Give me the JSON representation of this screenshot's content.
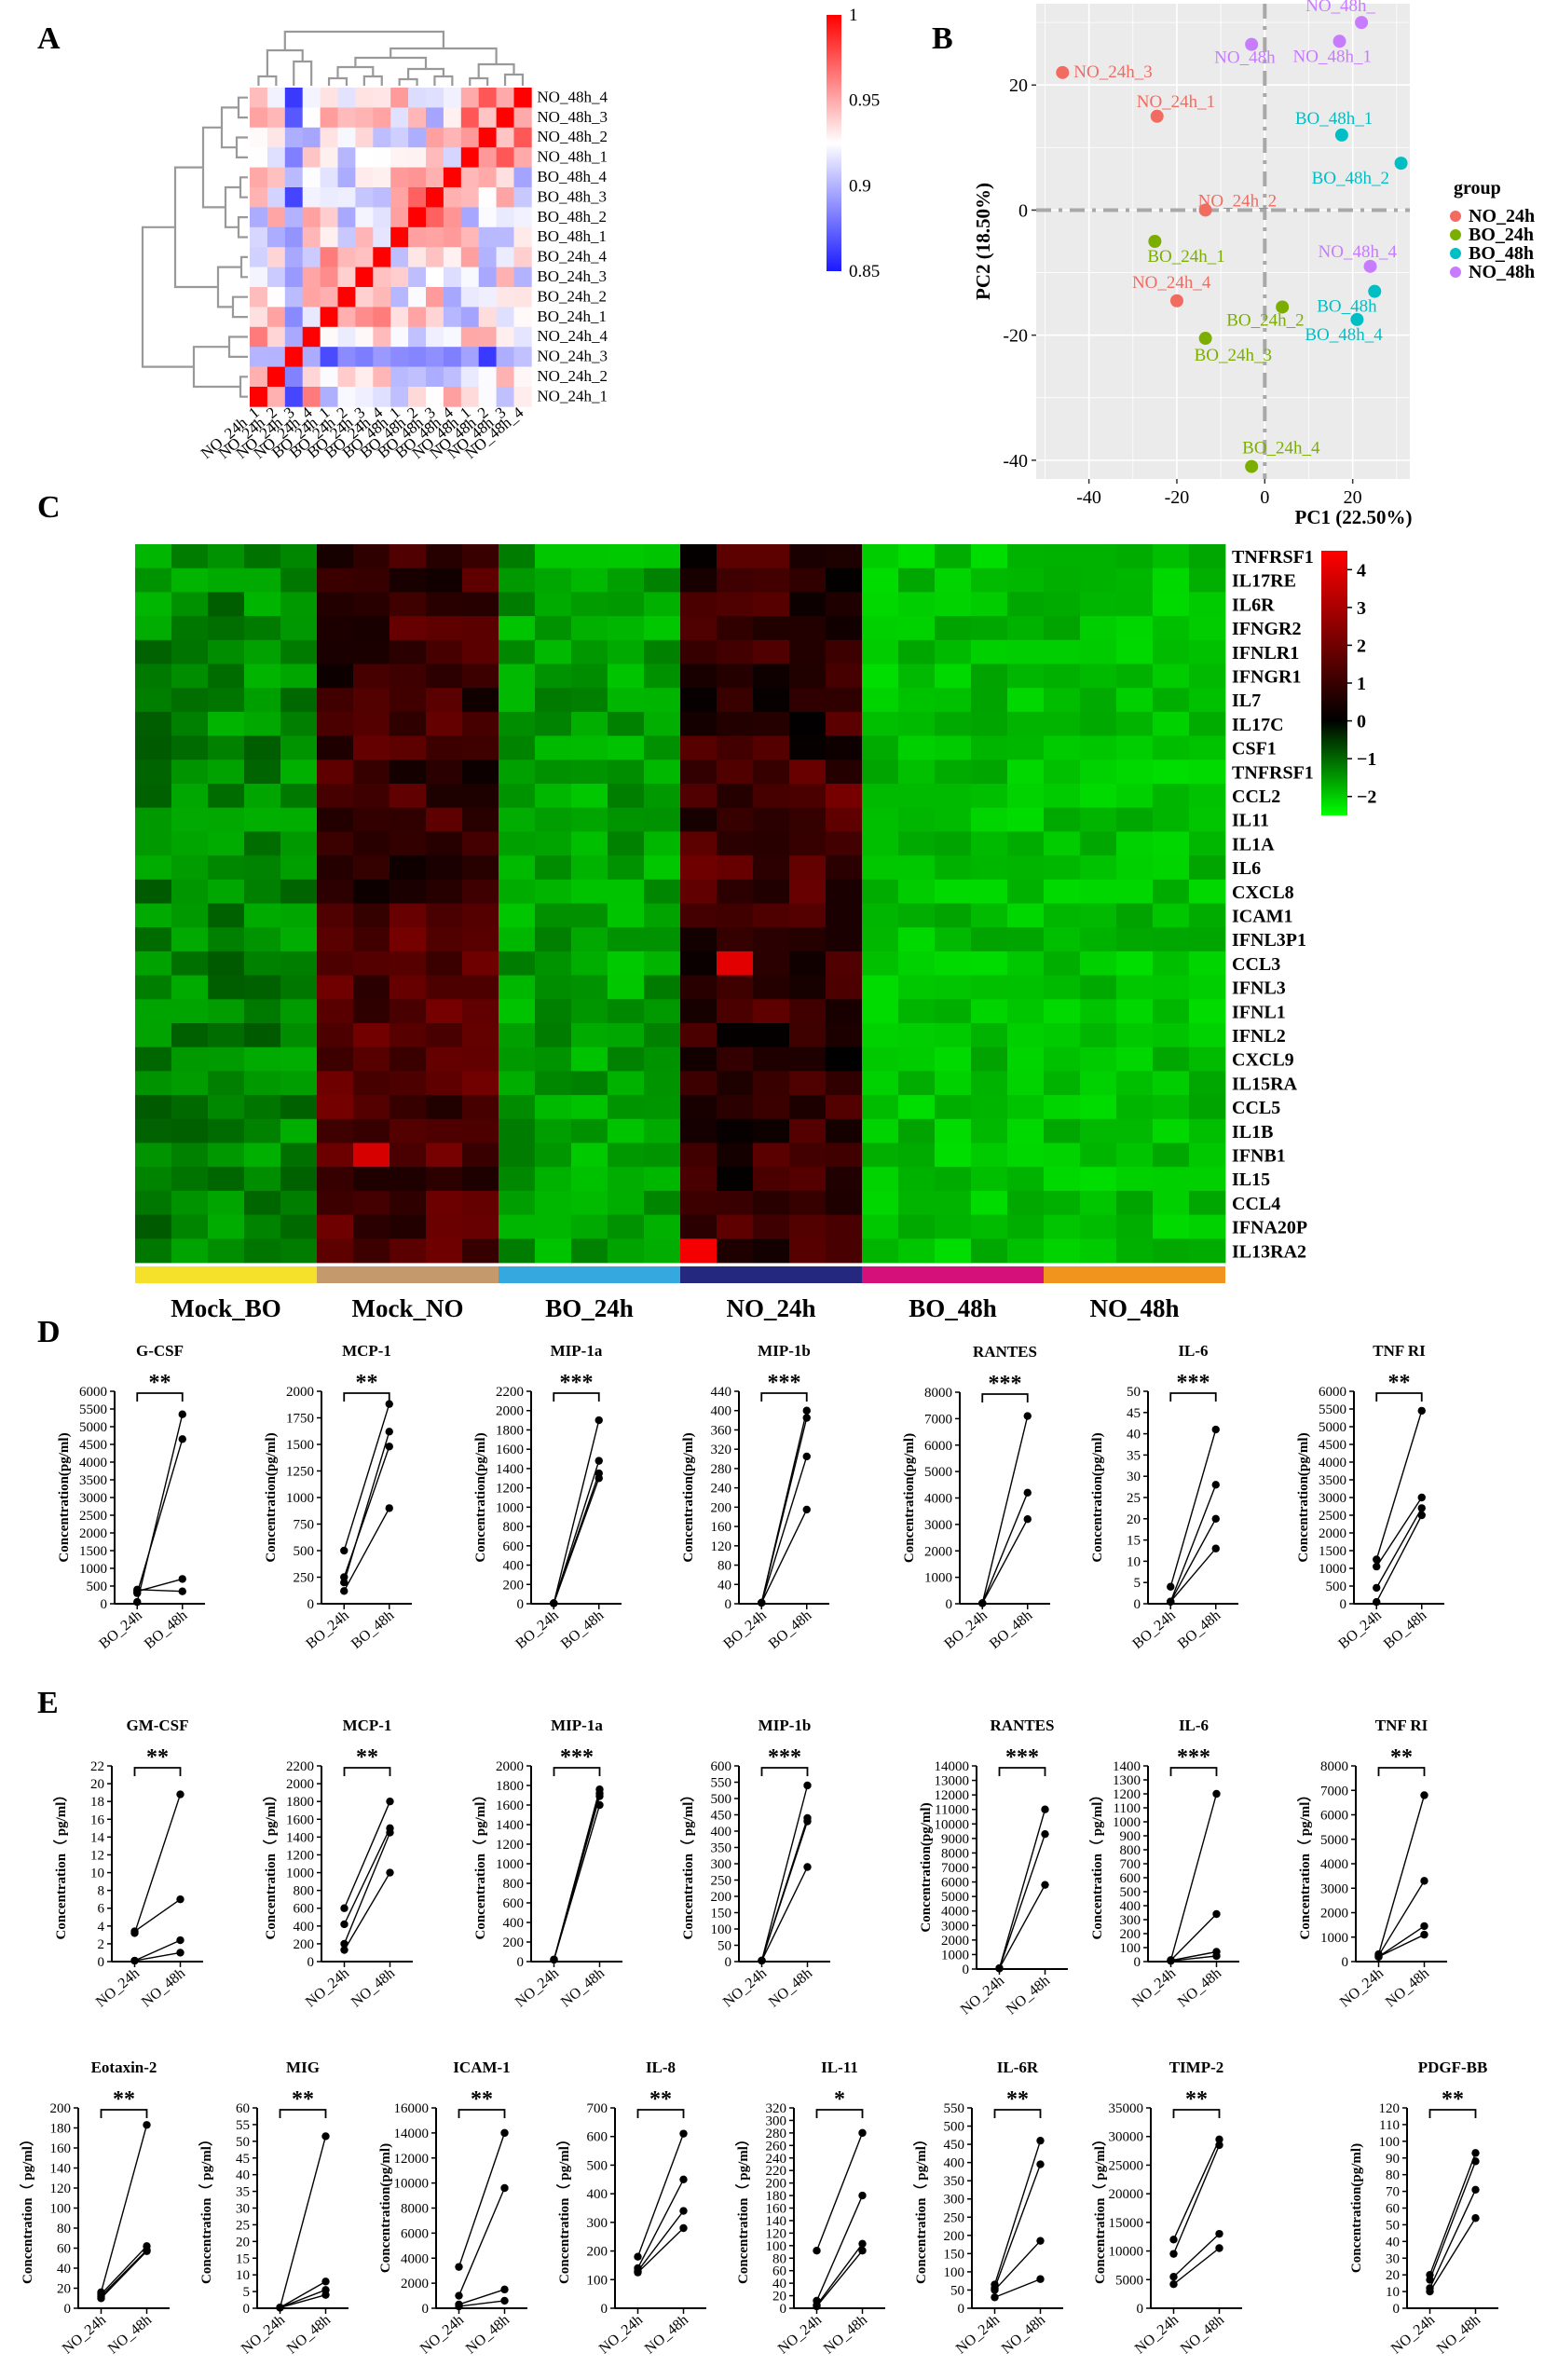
{
  "panel_letters": [
    "A",
    "B",
    "C",
    "D",
    "E"
  ],
  "chart_data": [
    {
      "panel": "A",
      "type": "heatmap",
      "samples": [
        "NO_24h_1",
        "NO_24h_2",
        "NO_24h_3",
        "NO_24h_4",
        "BO_24h_1",
        "BO_24h_2",
        "BO_24h_3",
        "BO_24h_4",
        "BO_48h_1",
        "BO_48h_2",
        "BO_48h_3",
        "BO_48h_4",
        "NO_48h_1",
        "NO_48h_2",
        "NO_48h_3",
        "NO_48h_4"
      ],
      "colorbar": {
        "ticks": [
          "1",
          "0.95",
          "0.9",
          "0.85"
        ],
        "range": [
          0.85,
          1
        ],
        "low_color": "#1a1aff",
        "mid_color": "#ffffff",
        "high_color": "#ff0000"
      },
      "dendrogram": true
    },
    {
      "panel": "B",
      "type": "scatter",
      "xlabel": "PC1 (22.50%)",
      "ylabel": "PC2 (18.50%)",
      "xlim": [
        -52,
        33
      ],
      "ylim": [
        -43,
        33
      ],
      "xticks": [
        -40,
        -20,
        0,
        20
      ],
      "yticks": [
        -40,
        -20,
        0,
        20
      ],
      "legend_title": "group",
      "legend_position": "right",
      "series": [
        {
          "name": "NO_24h",
          "color": "#f26b61",
          "points": [
            {
              "label": "NO_24h_1",
              "x": -24.5,
              "y": 15
            },
            {
              "label": "NO_24h_2",
              "x": -13.5,
              "y": 0
            },
            {
              "label": "NO_24h_3",
              "x": -46,
              "y": 22
            },
            {
              "label": "NO_24h_4",
              "x": -20,
              "y": -14.5
            }
          ]
        },
        {
          "name": "BO_24h",
          "color": "#7cae00",
          "points": [
            {
              "label": "BO_24h_1",
              "x": -25,
              "y": -5
            },
            {
              "label": "BO_24h_2",
              "x": 4,
              "y": -15.5
            },
            {
              "label": "BO_24h_3",
              "x": -13.5,
              "y": -20.5
            },
            {
              "label": "BO_24h_4",
              "x": -3,
              "y": -41
            }
          ]
        },
        {
          "name": "BO_48h",
          "color": "#00bfc4",
          "points": [
            {
              "label": "BO_48h_1",
              "x": 17.5,
              "y": 12
            },
            {
              "label": "BO_48h_2",
              "x": 31,
              "y": 7.5
            },
            {
              "label": "BO_48h",
              "x": 25,
              "y": -13
            },
            {
              "label": "BO_48h_4",
              "x": 21,
              "y": -17.5
            }
          ]
        },
        {
          "name": "NO_48h",
          "color": "#c77cff",
          "points": [
            {
              "label": "NO_48h_",
              "x": 22,
              "y": 30
            },
            {
              "label": "NO_48h_1",
              "x": 17,
              "y": 27
            },
            {
              "label": "NO_48h",
              "x": -3,
              "y": 26.5
            },
            {
              "label": "NO_48h_4",
              "x": 24,
              "y": -9
            }
          ]
        }
      ]
    },
    {
      "panel": "C",
      "type": "heatmap",
      "genes": [
        "TNFRSF1",
        "IL17RE",
        "IL6R",
        "IFNGR2",
        "IFNLR1",
        "IFNGR1",
        "IL7",
        "IL17C",
        "CSF1",
        "TNFRSF1",
        "CCL2",
        "IL11",
        "IL1A",
        "IL6",
        "CXCL8",
        "ICAM1",
        "IFNL3P1",
        "CCL3",
        "IFNL3",
        "IFNL1",
        "IFNL2",
        "CXCL9",
        "IL15RA",
        "CCL5",
        "IL1B",
        "IFNB1",
        "IL15",
        "CCL4",
        "IFNA20P",
        "IL13RA2"
      ],
      "groups": [
        {
          "name": "Mock_BO",
          "color": "#f5e02a"
        },
        {
          "name": "Mock_NO",
          "color": "#c49a6c"
        },
        {
          "name": "BO_24h",
          "color": "#35a8df"
        },
        {
          "name": "NO_24h",
          "color": "#24287e"
        },
        {
          "name": "BO_48h",
          "color": "#d6107a"
        },
        {
          "name": "NO_48h",
          "color": "#f0941e"
        }
      ],
      "colorbar": {
        "ticks": [
          "4",
          "3",
          "2",
          "1",
          "0",
          "−1",
          "−2"
        ],
        "range": [
          -2.5,
          4.5
        ]
      }
    },
    {
      "panel": "D",
      "type": "line",
      "ylabel": "Concentration(pg/ml)",
      "categories": [
        "BO_24h",
        "BO_48h"
      ],
      "subplots": [
        {
          "title": "G-CSF",
          "sig": "**",
          "ymax": 6000,
          "yticks": [
            "0",
            "500",
            "1000",
            "1500",
            "2000",
            "2500",
            "3000",
            "3500",
            "4000",
            "4500",
            "5000",
            "5500",
            "6000"
          ],
          "pairs": [
            [
              50,
              5350
            ],
            [
              300,
              4650
            ],
            [
              350,
              700
            ],
            [
              400,
              350
            ]
          ]
        },
        {
          "title": "MCP-1",
          "sig": "**",
          "ymax": 2000,
          "yticks": [
            "0",
            "250",
            "500",
            "750",
            "1000",
            "1250",
            "1500",
            "1750",
            "2000"
          ],
          "pairs": [
            [
              500,
              1880
            ],
            [
              200,
              1620
            ],
            [
              250,
              1480
            ],
            [
              120,
              900
            ]
          ]
        },
        {
          "title": "MIP-1a",
          "sig": "***",
          "ymax": 2200,
          "yticks": [
            "0",
            "200",
            "400",
            "600",
            "800",
            "1000",
            "1200",
            "1400",
            "1600",
            "1800",
            "2000",
            "2200"
          ],
          "pairs": [
            [
              5,
              1900
            ],
            [
              5,
              1480
            ],
            [
              5,
              1350
            ],
            [
              5,
              1300
            ]
          ]
        },
        {
          "title": "MIP-1b",
          "sig": "***",
          "ymax": 440,
          "yticks": [
            "0",
            "40",
            "80",
            "120",
            "160",
            "200",
            "240",
            "280",
            "320",
            "360",
            "400",
            "440"
          ],
          "pairs": [
            [
              2,
              400
            ],
            [
              2,
              385
            ],
            [
              2,
              305
            ],
            [
              2,
              195
            ]
          ]
        },
        {
          "title": "RANTES",
          "sig": "***",
          "ymax": 8000,
          "yticks": [
            "0",
            "1000",
            "2000",
            "3000",
            "4000",
            "5000",
            "6000",
            "7000",
            "8000"
          ],
          "pairs": [
            [
              20,
              7100
            ],
            [
              20,
              4200
            ],
            [
              20,
              3200
            ]
          ]
        },
        {
          "title": "IL-6",
          "sig": "***",
          "ymax": 50,
          "yticks": [
            "0",
            "5",
            "10",
            "15",
            "20",
            "25",
            "30",
            "35",
            "40",
            "45",
            "50"
          ],
          "pairs": [
            [
              4,
              41
            ],
            [
              0.5,
              28
            ],
            [
              0.5,
              20
            ],
            [
              0.5,
              13
            ]
          ]
        },
        {
          "title": "TNF RI",
          "sig": "**",
          "ymax": 6000,
          "yticks": [
            "0",
            "500",
            "1000",
            "1500",
            "2000",
            "2500",
            "3000",
            "3500",
            "4000",
            "4500",
            "5000",
            "5500",
            "6000"
          ],
          "pairs": [
            [
              1250,
              5450
            ],
            [
              1050,
              3000
            ],
            [
              450,
              2700
            ],
            [
              50,
              2500
            ]
          ]
        }
      ]
    },
    {
      "panel": "E",
      "type": "line",
      "categories": [
        "NO_24h",
        "NO_48h"
      ],
      "subplots": [
        {
          "title": "GM-CSF",
          "sig": "**",
          "ylabel": "Concentration（ pg/ml）",
          "ymax": 22,
          "yticks": [
            "0",
            "2",
            "4",
            "6",
            "8",
            "10",
            "12",
            "14",
            "16",
            "18",
            "20",
            "22"
          ],
          "pairs": [
            [
              3.2,
              18.8
            ],
            [
              3.4,
              7
            ],
            [
              0.1,
              2.4
            ],
            [
              0.1,
              1
            ]
          ]
        },
        {
          "title": "MCP-1",
          "sig": "**",
          "ylabel": "Concentration（ pg/ml）",
          "ymax": 2200,
          "yticks": [
            "0",
            "200",
            "400",
            "600",
            "800",
            "1000",
            "1200",
            "1400",
            "1600",
            "1800",
            "2000",
            "2200"
          ],
          "pairs": [
            [
              600,
              1800
            ],
            [
              420,
              1500
            ],
            [
              200,
              1450
            ],
            [
              130,
              1000
            ]
          ]
        },
        {
          "title": "MIP-1a",
          "sig": "***",
          "ylabel": "Concentration（ pg/ml）",
          "ymax": 2000,
          "yticks": [
            "0",
            "200",
            "400",
            "600",
            "800",
            "1000",
            "1200",
            "1400",
            "1600",
            "1800",
            "2000"
          ],
          "pairs": [
            [
              20,
              1760
            ],
            [
              20,
              1720
            ],
            [
              20,
              1690
            ],
            [
              20,
              1600
            ]
          ]
        },
        {
          "title": "MIP-1b",
          "sig": "***",
          "ylabel": "Concentration（ pg/ml）",
          "ymax": 600,
          "yticks": [
            "0",
            "50",
            "100",
            "150",
            "200",
            "250",
            "300",
            "350",
            "400",
            "450",
            "500",
            "550",
            "600"
          ],
          "pairs": [
            [
              3,
              540
            ],
            [
              3,
              440
            ],
            [
              3,
              430
            ],
            [
              3,
              290
            ]
          ]
        },
        {
          "title": "RANTES",
          "sig": "***",
          "ylabel": "Concentration(pg/ml)",
          "ymax": 14000,
          "yticks": [
            "0",
            "1000",
            "2000",
            "3000",
            "4000",
            "5000",
            "6000",
            "7000",
            "8000",
            "9000",
            "10000",
            "11000",
            "12000",
            "13000",
            "14000"
          ],
          "pairs": [
            [
              50,
              11000
            ],
            [
              50,
              9300
            ],
            [
              50,
              5800
            ]
          ]
        },
        {
          "title": "IL-6",
          "sig": "***",
          "ylabel": "Concentration（ pg/ml）",
          "ymax": 1400,
          "yticks": [
            "0",
            "100",
            "200",
            "300",
            "400",
            "500",
            "600",
            "700",
            "800",
            "900",
            "1000",
            "1100",
            "1200",
            "1300",
            "1400"
          ],
          "pairs": [
            [
              10,
              1200
            ],
            [
              10,
              340
            ],
            [
              8,
              70
            ],
            [
              5,
              40
            ]
          ]
        },
        {
          "title": "TNF RI",
          "sig": "**",
          "ylabel": "Concentration（ pg/ml）",
          "ymax": 8000,
          "yticks": [
            "0",
            "1000",
            "2000",
            "3000",
            "4000",
            "5000",
            "6000",
            "7000",
            "8000"
          ],
          "pairs": [
            [
              300,
              6800
            ],
            [
              250,
              3300
            ],
            [
              200,
              1450
            ],
            [
              200,
              1100
            ]
          ]
        },
        {
          "title": "Eotaxin-2",
          "sig": "**",
          "ylabel": "Concentration（ pg/ml）",
          "ymax": 200,
          "yticks": [
            "0",
            "20",
            "40",
            "60",
            "80",
            "100",
            "120",
            "140",
            "160",
            "180",
            "200"
          ],
          "pairs": [
            [
              16,
              183
            ],
            [
              14,
              62
            ],
            [
              12,
              58
            ],
            [
              10,
              57
            ]
          ]
        },
        {
          "title": "MIG",
          "sig": "**",
          "ylabel": "Concentration（ pg/ml）",
          "ymax": 60,
          "yticks": [
            "0",
            "5",
            "10",
            "15",
            "20",
            "25",
            "30",
            "35",
            "40",
            "45",
            "50",
            "55",
            "60"
          ],
          "pairs": [
            [
              0.2,
              51.5
            ],
            [
              0.2,
              8
            ],
            [
              0.2,
              5.5
            ],
            [
              0.2,
              4
            ]
          ]
        },
        {
          "title": "ICAM-1",
          "sig": "**",
          "ylabel": "Concentration(pg/ml)",
          "ymax": 16000,
          "yticks": [
            "0",
            "2000",
            "4000",
            "6000",
            "8000",
            "10000",
            "12000",
            "14000",
            "16000"
          ],
          "pairs": [
            [
              3300,
              14000
            ],
            [
              1000,
              9600
            ],
            [
              300,
              1500
            ],
            [
              150,
              600
            ]
          ]
        },
        {
          "title": "IL-8",
          "sig": "**",
          "ylabel": "Concentration（ pg/ml）",
          "ymax": 700,
          "yticks": [
            "0",
            "100",
            "200",
            "300",
            "400",
            "500",
            "600",
            "700"
          ],
          "pairs": [
            [
              180,
              610
            ],
            [
              140,
              450
            ],
            [
              130,
              340
            ],
            [
              125,
              280
            ]
          ]
        },
        {
          "title": "IL-11",
          "sig": "*",
          "ylabel": "Concentration（ pg/ml）",
          "ymax": 320,
          "yticks": [
            "0",
            "20",
            "40",
            "60",
            "80",
            "100",
            "120",
            "140",
            "160",
            "180",
            "200",
            "220",
            "240",
            "260",
            "280",
            "300",
            "320"
          ],
          "pairs": [
            [
              92,
              280
            ],
            [
              12,
              180
            ],
            [
              5,
              103
            ],
            [
              3,
              92
            ]
          ]
        },
        {
          "title": "IL-6R",
          "sig": "**",
          "ylabel": "Concentration（ pg/ml）",
          "ymax": 550,
          "yticks": [
            "0",
            "50",
            "100",
            "150",
            "200",
            "250",
            "300",
            "350",
            "400",
            "450",
            "500",
            "550"
          ],
          "pairs": [
            [
              65,
              460
            ],
            [
              55,
              395
            ],
            [
              50,
              185
            ],
            [
              30,
              80
            ]
          ]
        },
        {
          "title": "TIMP-2",
          "sig": "**",
          "ylabel": "Concentration（ pg/ml）",
          "ymax": 35000,
          "yticks": [
            "0",
            "5000",
            "10000",
            "15000",
            "20000",
            "25000",
            "30000",
            "35000"
          ],
          "pairs": [
            [
              12000,
              29500
            ],
            [
              9500,
              28500
            ],
            [
              5500,
              13000
            ],
            [
              4200,
              10500
            ]
          ]
        },
        {
          "title": "PDGF-BB",
          "sig": "**",
          "ylabel": "Concentration(pg/ml)",
          "ymax": 120,
          "yticks": [
            "0",
            "10",
            "20",
            "30",
            "40",
            "50",
            "60",
            "70",
            "80",
            "90",
            "100",
            "110",
            "120"
          ],
          "pairs": [
            [
              20,
              93
            ],
            [
              17,
              88
            ],
            [
              12,
              71
            ],
            [
              10,
              54
            ]
          ]
        }
      ]
    }
  ]
}
